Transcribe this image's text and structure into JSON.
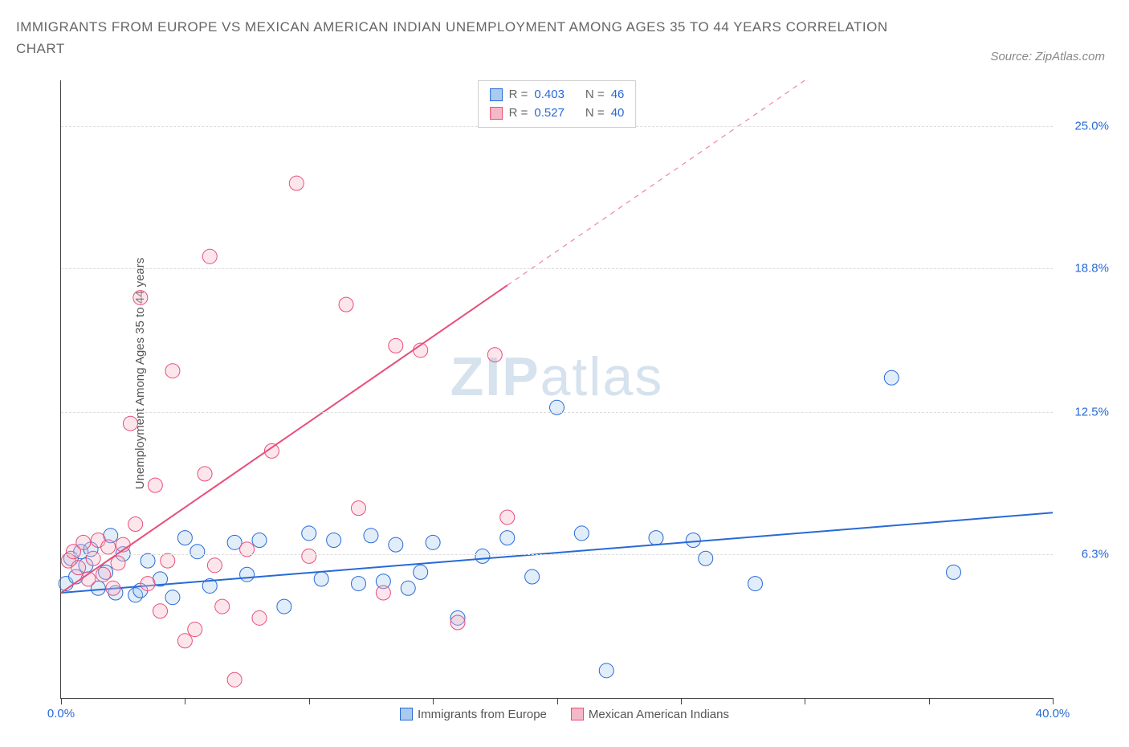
{
  "title": "IMMIGRANTS FROM EUROPE VS MEXICAN AMERICAN INDIAN UNEMPLOYMENT AMONG AGES 35 TO 44 YEARS CORRELATION CHART",
  "source": "Source: ZipAtlas.com",
  "watermark_bold": "ZIP",
  "watermark_rest": "atlas",
  "chart": {
    "type": "scatter",
    "y_axis_title": "Unemployment Among Ages 35 to 44 years",
    "xlim": [
      0,
      40
    ],
    "ylim": [
      0,
      27
    ],
    "x_ticks": [
      0,
      5,
      10,
      15,
      20,
      25,
      30,
      35,
      40
    ],
    "x_tick_labels_shown": {
      "0": "0.0%",
      "40": "40.0%"
    },
    "y_gridlines": [
      6.3,
      12.5,
      18.8,
      25.0
    ],
    "y_tick_labels": [
      "6.3%",
      "12.5%",
      "18.8%",
      "25.0%"
    ],
    "x_label_color": "#2869d6",
    "y_label_color": "#2869d6",
    "grid_color": "#dddddd",
    "axis_color": "#444444",
    "background_color": "#ffffff",
    "marker_radius": 9,
    "marker_fill_opacity": 0.35,
    "marker_stroke_width": 1,
    "line_width": 2,
    "series": [
      {
        "name": "Immigrants from Europe",
        "color_stroke": "#2869d6",
        "color_fill": "#a9cbee",
        "r": "0.403",
        "n": "46",
        "trend": {
          "x1": 0,
          "y1": 4.6,
          "x2": 40,
          "y2": 8.1,
          "solid_until_x": 40
        },
        "points": [
          [
            0.2,
            5.0
          ],
          [
            0.4,
            6.1
          ],
          [
            0.6,
            5.3
          ],
          [
            0.8,
            6.4
          ],
          [
            1.0,
            5.8
          ],
          [
            1.2,
            6.5
          ],
          [
            1.5,
            4.8
          ],
          [
            1.8,
            5.5
          ],
          [
            2.0,
            7.1
          ],
          [
            2.2,
            4.6
          ],
          [
            2.5,
            6.3
          ],
          [
            3.0,
            4.5
          ],
          [
            3.2,
            4.7
          ],
          [
            3.5,
            6.0
          ],
          [
            4.0,
            5.2
          ],
          [
            4.5,
            4.4
          ],
          [
            5.0,
            7.0
          ],
          [
            5.5,
            6.4
          ],
          [
            6.0,
            4.9
          ],
          [
            7.0,
            6.8
          ],
          [
            7.5,
            5.4
          ],
          [
            8.0,
            6.9
          ],
          [
            9.0,
            4.0
          ],
          [
            10.0,
            7.2
          ],
          [
            10.5,
            5.2
          ],
          [
            11.0,
            6.9
          ],
          [
            12.0,
            5.0
          ],
          [
            12.5,
            7.1
          ],
          [
            13.0,
            5.1
          ],
          [
            13.5,
            6.7
          ],
          [
            14.0,
            4.8
          ],
          [
            14.5,
            5.5
          ],
          [
            15.0,
            6.8
          ],
          [
            16.0,
            3.5
          ],
          [
            17.0,
            6.2
          ],
          [
            18.0,
            7.0
          ],
          [
            19.0,
            5.3
          ],
          [
            20.0,
            12.7
          ],
          [
            21.0,
            7.2
          ],
          [
            22.0,
            1.2
          ],
          [
            24.0,
            7.0
          ],
          [
            25.5,
            6.9
          ],
          [
            26.0,
            6.1
          ],
          [
            28.0,
            5.0
          ],
          [
            33.5,
            14.0
          ],
          [
            36.0,
            5.5
          ]
        ]
      },
      {
        "name": "Mexican American Indians",
        "color_stroke": "#e84e7a",
        "color_fill": "#f5b8c8",
        "r": "0.527",
        "n": "40",
        "trend": {
          "x1": 0,
          "y1": 4.6,
          "x2": 30,
          "y2": 27.0,
          "solid_until_x": 18
        },
        "points": [
          [
            0.3,
            6.0
          ],
          [
            0.5,
            6.4
          ],
          [
            0.7,
            5.7
          ],
          [
            0.9,
            6.8
          ],
          [
            1.1,
            5.2
          ],
          [
            1.3,
            6.1
          ],
          [
            1.5,
            6.9
          ],
          [
            1.7,
            5.4
          ],
          [
            1.9,
            6.6
          ],
          [
            2.1,
            4.8
          ],
          [
            2.3,
            5.9
          ],
          [
            2.5,
            6.7
          ],
          [
            2.8,
            12.0
          ],
          [
            3.0,
            7.6
          ],
          [
            3.2,
            17.5
          ],
          [
            3.5,
            5.0
          ],
          [
            3.8,
            9.3
          ],
          [
            4.0,
            3.8
          ],
          [
            4.3,
            6.0
          ],
          [
            4.5,
            14.3
          ],
          [
            5.0,
            2.5
          ],
          [
            5.4,
            3.0
          ],
          [
            5.8,
            9.8
          ],
          [
            6.0,
            19.3
          ],
          [
            6.2,
            5.8
          ],
          [
            6.5,
            4.0
          ],
          [
            7.0,
            0.8
          ],
          [
            7.5,
            6.5
          ],
          [
            8.0,
            3.5
          ],
          [
            8.5,
            10.8
          ],
          [
            9.5,
            22.5
          ],
          [
            10.0,
            6.2
          ],
          [
            11.5,
            17.2
          ],
          [
            12.0,
            8.3
          ],
          [
            13.0,
            4.6
          ],
          [
            13.5,
            15.4
          ],
          [
            14.5,
            15.2
          ],
          [
            16.0,
            3.3
          ],
          [
            17.5,
            15.0
          ],
          [
            18.0,
            7.9
          ]
        ]
      }
    ],
    "x_legend_items": [
      {
        "label": "Immigrants from Europe",
        "fill": "#a9cbee",
        "stroke": "#2869d6"
      },
      {
        "label": "Mexican American Indians",
        "fill": "#f5b8c8",
        "stroke": "#e84e7a"
      }
    ],
    "stat_legend": {
      "r_label": "R =",
      "n_label": "N =",
      "value_color": "#2869d6"
    }
  }
}
